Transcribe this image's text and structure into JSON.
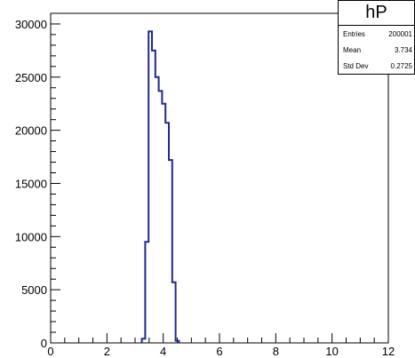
{
  "chart_data": {
    "type": "bar",
    "title": "",
    "xlabel": "",
    "ylabel": "",
    "xlim": [
      0,
      12
    ],
    "ylim": [
      0,
      31000
    ],
    "x_ticks": [
      "0",
      "2",
      "4",
      "6",
      "8",
      "10",
      "12"
    ],
    "y_ticks": [
      "0",
      "5000",
      "10000",
      "15000",
      "20000",
      "25000",
      "30000"
    ],
    "bin_width": 0.12,
    "bins": [
      {
        "x": 3.24,
        "value": 400
      },
      {
        "x": 3.36,
        "value": 9500
      },
      {
        "x": 3.48,
        "value": 29300
      },
      {
        "x": 3.6,
        "value": 27500
      },
      {
        "x": 3.72,
        "value": 25000
      },
      {
        "x": 3.84,
        "value": 23700
      },
      {
        "x": 3.96,
        "value": 22500
      },
      {
        "x": 4.08,
        "value": 20700
      },
      {
        "x": 4.2,
        "value": 17200
      },
      {
        "x": 4.32,
        "value": 5700
      },
      {
        "x": 4.44,
        "value": 200
      }
    ],
    "grid": false,
    "line_color": "#1f2a8c"
  },
  "stats": {
    "title": "hP",
    "rows": [
      {
        "label": "Entries",
        "value": "200001"
      },
      {
        "label": "Mean",
        "value": "3.734"
      },
      {
        "label": "Std Dev",
        "value": "0.2725"
      }
    ]
  }
}
